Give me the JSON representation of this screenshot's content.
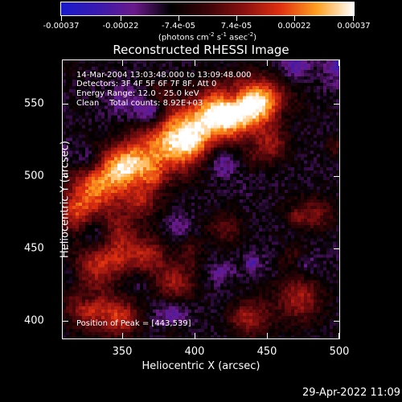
{
  "colorbar": {
    "ticks": [
      "-0.00037",
      "-0.00022",
      "-7.4e-05",
      "7.4e-05",
      "0.00022",
      "0.00037"
    ],
    "tick_values": [
      -0.00037,
      -0.00022,
      -7.4e-05,
      7.4e-05,
      0.00022,
      0.00037
    ],
    "unit_parts": [
      "(photons cm",
      "-2",
      " s",
      "-1",
      " asec",
      "-2",
      ")"
    ],
    "colors": [
      "#1a1acc",
      "#3a1ab0",
      "#6a1a8a",
      "#000000",
      "#3a0408",
      "#8a1010",
      "#e03010",
      "#ffa020",
      "#ffffff"
    ]
  },
  "info": {
    "time_range": "14-Mar-2004 13:03:48.000 to 13:09:48.000",
    "detectors": "Detectors: 3F 4F 5F 6F 7F 8F, Att 0",
    "energy_range": "Energy Range: 12.0 - 25.0 keV",
    "algorithm_and_counts": "Clean    Total counts: 8.92E+03",
    "peak_position": "Position of Peak = [443,539]"
  },
  "chart_data": {
    "type": "heatmap",
    "title": "Reconstructed RHESSI Image",
    "xlabel": "Heliocentric X (arcsec)",
    "ylabel": "Heliocentric Y (arcsec)",
    "xlim": [
      309,
      500
    ],
    "ylim": [
      388,
      580
    ],
    "x_ticks": [
      350,
      400,
      450,
      500
    ],
    "y_ticks": [
      400,
      450,
      500,
      550
    ],
    "colorbar_range": [
      -0.00037,
      0.00037
    ],
    "peak": [
      443,
      539
    ],
    "grid": false
  },
  "footer": {
    "timestamp": "29-Apr-2022 11:09"
  }
}
